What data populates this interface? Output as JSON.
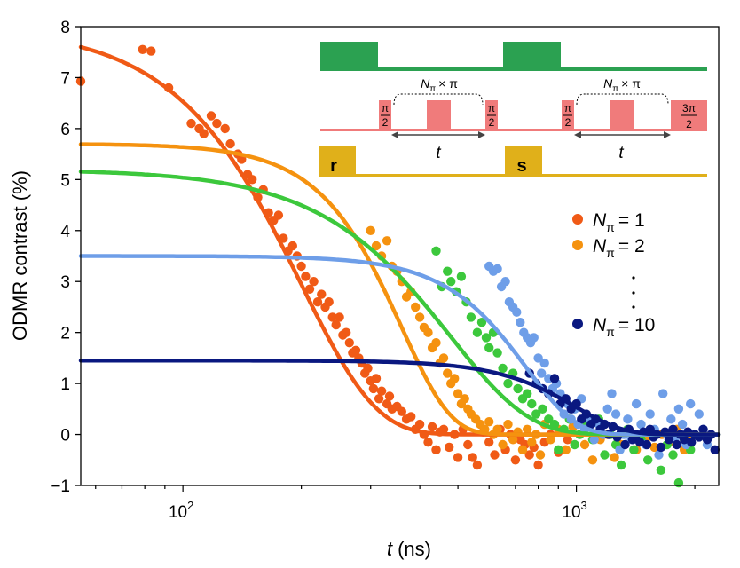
{
  "chart_data": {
    "type": "scatter",
    "x_scale": "log",
    "xlim": [
      55,
      2300
    ],
    "ylim": [
      -1,
      8
    ],
    "grid": false,
    "xlabel_italic": "t",
    "xlabel_unit": "(ns)",
    "ylabel": "ODMR contrast (%)",
    "x_ticks": [
      {
        "value": 100,
        "base": "10",
        "exp": "2"
      },
      {
        "value": 1000,
        "base": "10",
        "exp": "3"
      }
    ],
    "y_ticks": [
      {
        "value": -1,
        "label": "−1"
      },
      {
        "value": 0,
        "label": "0"
      },
      {
        "value": 1,
        "label": "1"
      },
      {
        "value": 2,
        "label": "2"
      },
      {
        "value": 3,
        "label": "3"
      },
      {
        "value": 4,
        "label": "4"
      },
      {
        "value": 5,
        "label": "5"
      },
      {
        "value": 6,
        "label": "6"
      },
      {
        "value": 7,
        "label": "7"
      },
      {
        "value": 8,
        "label": "8"
      }
    ],
    "legend_position": "right",
    "legend_symbol": "N",
    "legend_subscript": "π",
    "legend_ellipsis": ". . .",
    "series": [
      {
        "label_value": "= 1",
        "color": "#f05a16",
        "fit": {
          "A": 8.0,
          "T": 200,
          "n": 2.3
        },
        "points": [
          [
            55,
            6.93
          ],
          [
            79,
            7.55
          ],
          [
            83,
            7.52
          ],
          [
            92,
            6.8
          ],
          [
            105,
            6.1
          ],
          [
            110,
            6.0
          ],
          [
            113,
            5.9
          ],
          [
            118,
            6.25
          ],
          [
            122,
            6.1
          ],
          [
            128,
            6.0
          ],
          [
            132,
            5.7
          ],
          [
            138,
            5.5
          ],
          [
            141,
            5.4
          ],
          [
            146,
            5.1
          ],
          [
            150,
            5.0
          ],
          [
            155,
            4.65
          ],
          [
            160,
            4.8
          ],
          [
            165,
            4.35
          ],
          [
            170,
            4.2
          ],
          [
            175,
            4.3
          ],
          [
            180,
            3.85
          ],
          [
            185,
            3.6
          ],
          [
            190,
            3.7
          ],
          [
            195,
            3.5
          ],
          [
            200,
            3.3
          ],
          [
            205,
            3.1
          ],
          [
            210,
            2.85
          ],
          [
            215,
            3.0
          ],
          [
            220,
            2.6
          ],
          [
            225,
            2.75
          ],
          [
            230,
            2.5
          ],
          [
            235,
            2.6
          ],
          [
            240,
            2.3
          ],
          [
            245,
            2.15
          ],
          [
            250,
            2.3
          ],
          [
            255,
            1.95
          ],
          [
            260,
            2.0
          ],
          [
            265,
            1.8
          ],
          [
            270,
            1.6
          ],
          [
            275,
            1.65
          ],
          [
            280,
            1.5
          ],
          [
            285,
            1.4
          ],
          [
            290,
            1.2
          ],
          [
            295,
            1.3
          ],
          [
            300,
            1.05
          ],
          [
            305,
            0.9
          ],
          [
            310,
            1.1
          ],
          [
            315,
            0.7
          ],
          [
            320,
            0.85
          ],
          [
            330,
            0.6
          ],
          [
            335,
            0.75
          ],
          [
            340,
            0.5
          ],
          [
            350,
            0.55
          ],
          [
            360,
            0.45
          ],
          [
            370,
            0.3
          ],
          [
            380,
            0.35
          ],
          [
            390,
            0.1
          ],
          [
            400,
            0.2
          ],
          [
            410,
            0.0
          ],
          [
            420,
            -0.15
          ],
          [
            430,
            0.15
          ],
          [
            440,
            -0.3
          ],
          [
            450,
            0.05
          ],
          [
            460,
            0.1
          ],
          [
            475,
            -0.25
          ],
          [
            490,
            0.0
          ],
          [
            500,
            -0.45
          ],
          [
            515,
            0.1
          ],
          [
            530,
            -0.2
          ],
          [
            545,
            -0.45
          ],
          [
            560,
            -0.6
          ],
          [
            580,
            0.05
          ],
          [
            600,
            -0.15
          ],
          [
            620,
            -0.4
          ],
          [
            640,
            0.1
          ],
          [
            660,
            -0.3
          ],
          [
            680,
            0.0
          ],
          [
            700,
            -0.5
          ],
          [
            720,
            -0.1
          ],
          [
            740,
            -0.2
          ],
          [
            760,
            -0.4
          ],
          [
            780,
            -0.25
          ],
          [
            800,
            -0.6
          ],
          [
            830,
            -0.15
          ],
          [
            860,
            0.0
          ],
          [
            900,
            -0.35
          ],
          [
            950,
            -0.1
          ]
        ]
      },
      {
        "label_value": "= 2",
        "color": "#f5920f",
        "fit": {
          "A": 5.7,
          "T": 360,
          "n": 3.5
        },
        "points": [
          [
            300,
            4.0
          ],
          [
            310,
            3.7
          ],
          [
            320,
            3.5
          ],
          [
            330,
            3.8
          ],
          [
            340,
            3.3
          ],
          [
            350,
            3.2
          ],
          [
            360,
            3.0
          ],
          [
            370,
            2.7
          ],
          [
            380,
            2.8
          ],
          [
            390,
            2.5
          ],
          [
            400,
            2.3
          ],
          [
            410,
            2.1
          ],
          [
            420,
            2.0
          ],
          [
            430,
            1.7
          ],
          [
            440,
            1.8
          ],
          [
            450,
            1.4
          ],
          [
            460,
            1.5
          ],
          [
            470,
            1.2
          ],
          [
            480,
            1.0
          ],
          [
            490,
            1.1
          ],
          [
            500,
            0.8
          ],
          [
            510,
            0.6
          ],
          [
            520,
            0.7
          ],
          [
            530,
            0.5
          ],
          [
            540,
            0.4
          ],
          [
            555,
            0.3
          ],
          [
            570,
            0.2
          ],
          [
            585,
            0.1
          ],
          [
            600,
            0.25
          ],
          [
            615,
            0.0
          ],
          [
            630,
            0.1
          ],
          [
            650,
            -0.2
          ],
          [
            670,
            0.2
          ],
          [
            690,
            -0.1
          ],
          [
            710,
            0.05
          ],
          [
            730,
            -0.3
          ],
          [
            750,
            0.1
          ],
          [
            770,
            -0.15
          ],
          [
            790,
            0.0
          ],
          [
            810,
            -0.4
          ],
          [
            830,
            0.2
          ],
          [
            860,
            -0.1
          ],
          [
            900,
            0.1
          ],
          [
            940,
            -0.3
          ],
          [
            980,
            0.15
          ],
          [
            1050,
            -0.2
          ],
          [
            1100,
            -0.5
          ],
          [
            1150,
            -0.1
          ],
          [
            1200,
            0.0
          ],
          [
            1250,
            -0.45
          ],
          [
            1300,
            -0.2
          ],
          [
            1360,
            0.05
          ],
          [
            1420,
            -0.3
          ],
          [
            1500,
            -0.1
          ],
          [
            1580,
            -0.25
          ],
          [
            1650,
            0.0
          ],
          [
            1720,
            -0.15
          ],
          [
            1800,
            0.1
          ],
          [
            1880,
            -0.3
          ],
          [
            1950,
            -0.1
          ]
        ]
      },
      {
        "label_value": "",
        "color": "#3cc83c",
        "fit": {
          "A": 5.2,
          "T": 480,
          "n": 2.2
        },
        "points": [
          [
            440,
            3.6
          ],
          [
            455,
            2.9
          ],
          [
            470,
            3.2
          ],
          [
            480,
            3.0
          ],
          [
            495,
            2.8
          ],
          [
            510,
            3.1
          ],
          [
            525,
            2.6
          ],
          [
            540,
            2.3
          ],
          [
            560,
            2.0
          ],
          [
            575,
            2.2
          ],
          [
            590,
            1.9
          ],
          [
            600,
            1.7
          ],
          [
            615,
            2.0
          ],
          [
            630,
            1.6
          ],
          [
            650,
            1.3
          ],
          [
            670,
            1.0
          ],
          [
            690,
            1.2
          ],
          [
            710,
            0.9
          ],
          [
            730,
            0.7
          ],
          [
            750,
            0.8
          ],
          [
            770,
            0.6
          ],
          [
            790,
            0.4
          ],
          [
            820,
            0.5
          ],
          [
            850,
            0.3
          ],
          [
            880,
            0.2
          ],
          [
            900,
            -0.3
          ],
          [
            930,
            0.1
          ],
          [
            960,
            0.3
          ],
          [
            990,
            -0.2
          ],
          [
            1020,
            0.0
          ],
          [
            1060,
            0.2
          ],
          [
            1100,
            -0.1
          ],
          [
            1140,
            0.3
          ],
          [
            1180,
            -0.4
          ],
          [
            1220,
            0.0
          ],
          [
            1260,
            -0.2
          ],
          [
            1300,
            -0.6
          ],
          [
            1350,
            0.1
          ],
          [
            1400,
            -0.3
          ],
          [
            1460,
            -0.1
          ],
          [
            1520,
            -0.5
          ],
          [
            1580,
            0.0
          ],
          [
            1640,
            -0.7
          ],
          [
            1700,
            -0.2
          ],
          [
            1760,
            -0.4
          ],
          [
            1820,
            -0.95
          ],
          [
            1880,
            -0.1
          ],
          [
            1950,
            -0.3
          ]
        ]
      },
      {
        "label_value": "",
        "color": "#6e9ee8",
        "fit": {
          "A": 3.5,
          "T": 750,
          "n": 3.5
        },
        "points": [
          [
            600,
            3.3
          ],
          [
            615,
            3.2
          ],
          [
            630,
            3.25
          ],
          [
            645,
            2.9
          ],
          [
            660,
            3.0
          ],
          [
            675,
            2.6
          ],
          [
            690,
            2.5
          ],
          [
            705,
            2.4
          ],
          [
            720,
            2.2
          ],
          [
            735,
            2.0
          ],
          [
            750,
            1.9
          ],
          [
            765,
            1.8
          ],
          [
            780,
            1.9
          ],
          [
            800,
            1.5
          ],
          [
            815,
            1.2
          ],
          [
            830,
            1.4
          ],
          [
            850,
            1.1
          ],
          [
            870,
            0.9
          ],
          [
            890,
            1.0
          ],
          [
            910,
            0.8
          ],
          [
            930,
            0.4
          ],
          [
            950,
            0.6
          ],
          [
            970,
            0.3
          ],
          [
            990,
            0.5
          ],
          [
            1010,
            0.2
          ],
          [
            1030,
            0.7
          ],
          [
            1050,
            0.1
          ],
          [
            1080,
            0.3
          ],
          [
            1110,
            -0.1
          ],
          [
            1140,
            0.2
          ],
          [
            1170,
            0.0
          ],
          [
            1200,
            0.5
          ],
          [
            1230,
            0.8
          ],
          [
            1260,
            0.4
          ],
          [
            1290,
            -0.3
          ],
          [
            1320,
            0.0
          ],
          [
            1350,
            0.3
          ],
          [
            1380,
            -0.1
          ],
          [
            1420,
            0.6
          ],
          [
            1460,
            0.2
          ],
          [
            1500,
            -0.2
          ],
          [
            1540,
            0.4
          ],
          [
            1580,
            0.1
          ],
          [
            1620,
            -0.4
          ],
          [
            1660,
            0.8
          ],
          [
            1700,
            0.0
          ],
          [
            1740,
            0.3
          ],
          [
            1780,
            -0.1
          ],
          [
            1820,
            0.5
          ],
          [
            1860,
            0.2
          ],
          [
            1900,
            -0.2
          ],
          [
            1950,
            0.6
          ],
          [
            2000,
            0.0
          ],
          [
            2050,
            0.4
          ],
          [
            2100,
            0.1
          ],
          [
            2150,
            -0.2
          ]
        ]
      },
      {
        "label_value": "= 10",
        "color": "#0a1880",
        "fit": {
          "A": 1.45,
          "T": 1000,
          "n": 3.6
        },
        "points": [
          [
            760,
            1.2
          ],
          [
            790,
            1.0
          ],
          [
            820,
            0.9
          ],
          [
            850,
            0.8
          ],
          [
            880,
            1.1
          ],
          [
            910,
            0.6
          ],
          [
            940,
            0.7
          ],
          [
            970,
            0.5
          ],
          [
            1000,
            0.6
          ],
          [
            1030,
            0.3
          ],
          [
            1060,
            0.4
          ],
          [
            1090,
            0.2
          ],
          [
            1120,
            0.3
          ],
          [
            1150,
            0.1
          ],
          [
            1180,
            0.2
          ],
          [
            1210,
            0.0
          ],
          [
            1240,
            0.15
          ],
          [
            1270,
            -0.05
          ],
          [
            1300,
            0.05
          ],
          [
            1330,
            -0.2
          ],
          [
            1360,
            0.1
          ],
          [
            1390,
            -0.1
          ],
          [
            1420,
            0.0
          ],
          [
            1450,
            -0.15
          ],
          [
            1480,
            0.05
          ],
          [
            1510,
            -0.2
          ],
          [
            1540,
            0.1
          ],
          [
            1570,
            -0.05
          ],
          [
            1600,
            0.0
          ],
          [
            1640,
            -0.25
          ],
          [
            1680,
            0.05
          ],
          [
            1720,
            -0.1
          ],
          [
            1760,
            0.1
          ],
          [
            1800,
            -0.2
          ],
          [
            1840,
            0.0
          ],
          [
            1880,
            -0.1
          ],
          [
            1920,
            0.05
          ],
          [
            1960,
            -0.15
          ],
          [
            2000,
            0.0
          ],
          [
            2050,
            -0.05
          ],
          [
            2100,
            0.1
          ],
          [
            2150,
            -0.1
          ],
          [
            2200,
            0.0
          ],
          [
            2250,
            -0.3
          ]
        ]
      }
    ]
  },
  "inset": {
    "green_color": "#2ba151",
    "pink_color": "#f07b7b",
    "gold_color": "#e0b01a",
    "left_label_mid": "N",
    "nlabel_sub": "π",
    "nlabel_tail": "× π",
    "pi_over_2_num": "π",
    "pi_over_2_den": "2",
    "three_pi_num": "3π",
    "three_pi_den": "2",
    "t_label": "t",
    "r_label": "r",
    "s_label": "s"
  }
}
